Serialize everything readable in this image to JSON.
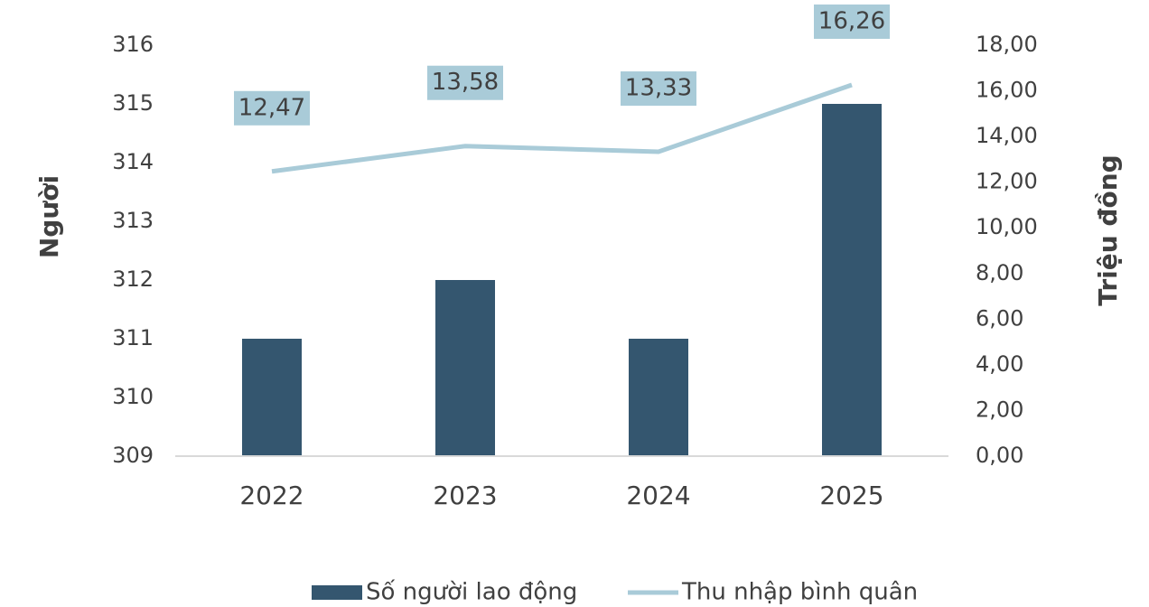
{
  "chart_data": {
    "type": "bar-line",
    "categories": [
      "2022",
      "2023",
      "2024",
      "2025"
    ],
    "series": [
      {
        "name": "Số người lao động",
        "type": "bar",
        "color": "#34566f",
        "values": [
          311,
          312,
          311,
          315
        ]
      },
      {
        "name": "Thu nhập bình quân",
        "type": "line",
        "axis": "y2",
        "color": "#a9cbd8",
        "values": [
          12.47,
          13.58,
          13.33,
          16.26
        ],
        "value_labels": [
          "12,47",
          "13,58",
          "13,33",
          "16,26"
        ]
      }
    ],
    "y_label": "Người",
    "y2_label": "Triệu đồng",
    "ylim": [
      309,
      316
    ],
    "yticks": [
      309,
      310,
      311,
      312,
      313,
      314,
      315,
      316
    ],
    "y2lim": [
      0,
      18
    ],
    "y2ticks": [
      {
        "value": 0,
        "label": "0,00"
      },
      {
        "value": 2,
        "label": "2,00"
      },
      {
        "value": 4,
        "label": "4,00"
      },
      {
        "value": 6,
        "label": "6,00"
      },
      {
        "value": 8,
        "label": "8,00"
      },
      {
        "value": 10,
        "label": "10,00"
      },
      {
        "value": 12,
        "label": "12,00"
      },
      {
        "value": 14,
        "label": "14,00"
      },
      {
        "value": 16,
        "label": "16,00"
      },
      {
        "value": 18,
        "label": "18,00"
      }
    ],
    "legend": "bottom"
  }
}
